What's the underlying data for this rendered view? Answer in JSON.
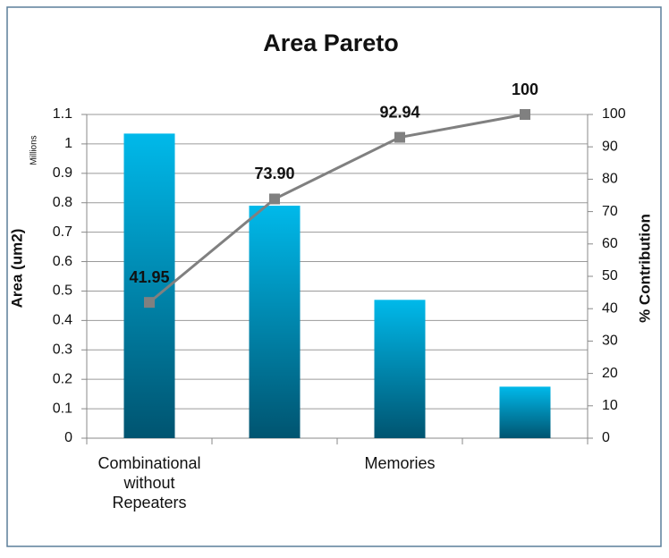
{
  "chart_data": {
    "type": "bar",
    "title": "Area Pareto",
    "y_label": "Area (um2)",
    "y_unit": "Millions",
    "y2_label": "% Contribution",
    "categories": [
      "Combinational without Repeaters",
      null,
      "Memories",
      null
    ],
    "series": [
      {
        "type": "bar",
        "color": "#00b9ea",
        "color_bottom": "#005470",
        "values": [
          1.035,
          0.79,
          0.47,
          0.175
        ]
      },
      {
        "type": "line",
        "axis": "y2",
        "color": "#808080",
        "values": [
          41.95,
          73.9,
          92.94,
          100
        ],
        "value_labels": [
          "41.95",
          "73.90",
          "92.94",
          "100"
        ]
      }
    ],
    "ylim": [
      0,
      1.1
    ],
    "yticks": [
      0,
      0.1,
      0.2,
      0.3,
      0.4,
      0.5,
      0.6,
      0.7,
      0.8,
      0.9,
      1,
      1.1
    ],
    "y2lim": [
      0,
      100
    ],
    "y2ticks": [
      0,
      10,
      20,
      30,
      40,
      50,
      60,
      70,
      80,
      90,
      100
    ],
    "grid": true
  }
}
